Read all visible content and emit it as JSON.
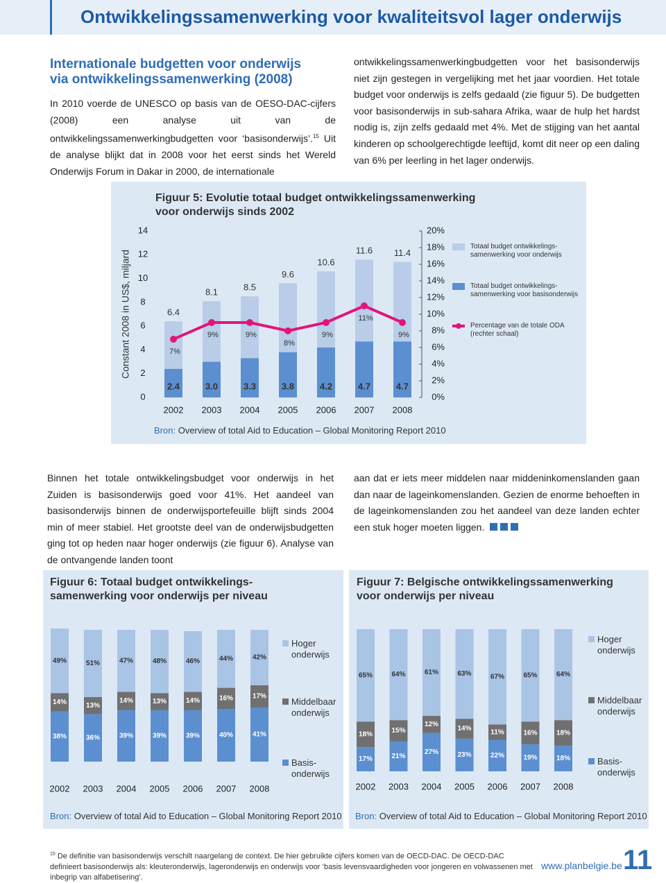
{
  "header": {
    "title": "Ontwikkelingssamenwerking voor kwaliteitsvol lager onderwijs"
  },
  "intro": {
    "heading_lines": [
      "Internationale budgetten voor onderwijs",
      "via ontwikkelingssamenwerking (2008)"
    ],
    "left_text_1": "In 2010 voerde de UNESCO op basis van de OESO-DAC-cijfers (2008) een analyse uit van de ontwikkelingssamenwerkingbudgetten voor ‘basisonderwijs’.",
    "footnote_ref": "15",
    "left_text_2": " Uit de analyse blijkt dat in 2008 voor het eerst sinds het Wereld Onderwijs Forum in Dakar in 2000, de internationale",
    "right_text": "ontwikkelingssamenwerkingbudgetten voor het basisonderwijs niet zijn gestegen in vergelijking met het jaar voordien. Het totale budget voor onderwijs is zelfs gedaald (zie figuur 5). De budgetten voor basisonderwijs in sub-sahara Afrika, waar de hulp het hardst nodig is, zijn zelfs gedaald met 4%. Met de stijging van het aantal kinderen op schoolgerechtigde leeftijd, komt dit neer op een daling van 6% per leerling in het lager onderwijs."
  },
  "chart_data": [
    {
      "type": "bar",
      "barmode": "overlay",
      "title": [
        "Figuur 5: Evolutie totaal budget ontwikkelingssamenwerking",
        "voor onderwijs sinds 2002"
      ],
      "ylabel": "Constant 2008 in US$, miljard",
      "categories": [
        "2002",
        "2003",
        "2004",
        "2005",
        "2006",
        "2007",
        "2008"
      ],
      "series": [
        {
          "name": "Totaal budget ontwikkelings-samenwerking voor onderwijs",
          "color": "#b9cde8",
          "values": [
            6.4,
            8.1,
            8.5,
            9.6,
            10.6,
            11.6,
            11.4
          ]
        },
        {
          "name": "Totaal budget ontwikkelings-samenwerking voor basisonderwijs",
          "color": "#5b8fd0",
          "values": [
            2.4,
            3.0,
            3.3,
            3.8,
            4.2,
            4.7,
            4.7
          ],
          "value_labels": [
            "2.4",
            "3.0",
            "3.3",
            "3.8",
            "4.2",
            "4.7",
            "4.7"
          ]
        },
        {
          "name": "Percentage van de totale ODA (rechter schaal)",
          "color": "#e2157a",
          "mark": "line",
          "axis": "y2",
          "values": [
            7,
            9,
            9,
            8,
            9,
            11,
            9
          ],
          "value_labels": [
            "7%",
            "9%",
            "9%",
            "8%",
            "9%",
            "11%",
            "9%"
          ]
        }
      ],
      "ylim": [
        0,
        14
      ],
      "yticks": [
        0,
        2,
        4,
        6,
        8,
        10,
        12,
        14
      ],
      "y2lim": [
        0,
        20
      ],
      "y2ticks": [
        {
          "value": 0,
          "label": "0%"
        },
        {
          "value": 2,
          "label": "2%"
        },
        {
          "value": 4,
          "label": "4%"
        },
        {
          "value": 6,
          "label": "6%"
        },
        {
          "value": 8,
          "label": "8%"
        },
        {
          "value": 10,
          "label": "10%"
        },
        {
          "value": 12,
          "label": "12%"
        },
        {
          "value": 14,
          "label": "14%"
        },
        {
          "value": 16,
          "label": "16%"
        },
        {
          "value": 18,
          "label": "18%"
        },
        {
          "value": 20,
          "label": "20%"
        }
      ],
      "source_prefix": "Bron:",
      "source": "Overview of total Aid to Education – Global Monitoring Report 2010"
    },
    {
      "type": "bar",
      "barmode": "stack",
      "title": [
        "Figuur 6: Totaal budget ontwikkelings-",
        "samenwerking voor onderwijs per niveau"
      ],
      "categories": [
        "2002",
        "2003",
        "2004",
        "2005",
        "2006",
        "2007",
        "2008"
      ],
      "series": [
        {
          "name": "Basis-onderwijs",
          "color": "#5b8fd0",
          "values": [
            38,
            36,
            39,
            39,
            39,
            40,
            41
          ],
          "value_labels": [
            "38%",
            "36%",
            "39%",
            "39%",
            "39%",
            "40%",
            "41%"
          ]
        },
        {
          "name": "Middelbaar onderwijs",
          "color": "#707070",
          "values": [
            14,
            13,
            14,
            13,
            14,
            16,
            17
          ],
          "value_labels": [
            "14%",
            "13%",
            "14%",
            "13%",
            "14%",
            "16%",
            "17%"
          ]
        },
        {
          "name": "Hoger onderwijs",
          "color": "#aac4e6",
          "values": [
            49,
            51,
            47,
            48,
            46,
            44,
            42
          ],
          "value_labels": [
            "49%",
            "51%",
            "47%",
            "48%",
            "46%",
            "44%",
            "42%"
          ]
        }
      ],
      "source_prefix": "Bron:",
      "source": "Overview of total Aid to Education – Global Monitoring Report 2010"
    },
    {
      "type": "bar",
      "barmode": "stack",
      "title": [
        "Figuur 7: Belgische ontwikkelingssamenwerking",
        "voor onderwijs per niveau"
      ],
      "categories": [
        "2002",
        "2003",
        "2004",
        "2005",
        "2006",
        "2007",
        "2008"
      ],
      "series": [
        {
          "name": "Basis-onderwijs",
          "color": "#5b8fd0",
          "values": [
            17,
            21,
            27,
            23,
            22,
            19,
            18
          ],
          "value_labels": [
            "17%",
            "21%",
            "27%",
            "23%",
            "22%",
            "19%",
            "18%"
          ]
        },
        {
          "name": "Middelbaar onderwijs",
          "color": "#707070",
          "values": [
            18,
            15,
            12,
            14,
            11,
            16,
            18
          ],
          "value_labels": [
            "18%",
            "15%",
            "12%",
            "14%",
            "11%",
            "16%",
            "18%"
          ]
        },
        {
          "name": "Hoger onderwijs",
          "color": "#aac4e6",
          "values": [
            65,
            64,
            61,
            63,
            67,
            65,
            64
          ],
          "value_labels": [
            "65%",
            "64%",
            "61%",
            "63%",
            "67%",
            "65%",
            "64%"
          ]
        }
      ],
      "source_prefix": "Bron:",
      "source": "Overview of total Aid to Education – Global Monitoring Report 2010"
    }
  ],
  "body": {
    "left_text": "Binnen het totale ontwikkelingsbudget voor onderwijs in het Zuiden is basisonderwijs goed voor 41%. Het aandeel van basisonderwijs binnen de onderwijsportefeuille blijft sinds 2004 min of meer stabiel. Het grootste deel van de onderwijsbudgetten ging tot op heden naar hoger onderwijs (zie figuur 6). Analyse van de ontvangende landen toont",
    "right_text": "aan dat er iets meer middelen naar middeninkomenslanden gaan dan naar de lageinkomenslanden. Gezien de enorme behoeften in de lageinkomenslanden zou het aandeel van deze landen echter een stuk hoger moeten liggen."
  },
  "footer": {
    "footnote_number": "15",
    "footnote_text": "De definitie van basisonderwijs verschilt naargelang de context. De hier gebruikte cijfers komen van de OECD-DAC. De OECD-DAC definieert basisonderwijs als: kleuteronderwijs, lageronderwijs en onderwijs voor ‘basis levensvaardigheden voor jongeren en volwassenen met inbegrip van alfabetisering’.",
    "url": "www.planbelgie.be",
    "page_number": "11"
  }
}
